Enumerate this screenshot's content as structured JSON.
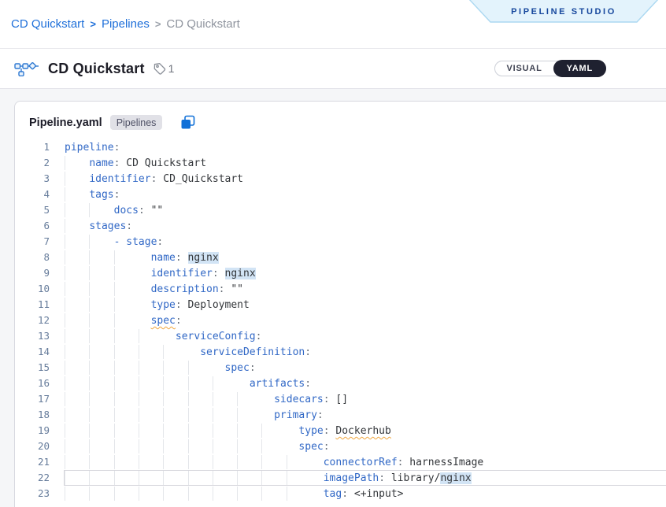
{
  "breadcrumb": {
    "items": [
      {
        "label": "CD Quickstart",
        "link": true
      },
      {
        "label": "Pipelines",
        "link": true
      },
      {
        "label": "CD Quickstart",
        "link": false
      }
    ],
    "separator": ">"
  },
  "banner": {
    "label": "PIPELINE STUDIO"
  },
  "header": {
    "title": "CD Quickstart",
    "tag_count": "1",
    "toggle": {
      "visual_label": "VISUAL",
      "yaml_label": "YAML",
      "active": "yaml"
    }
  },
  "editor": {
    "file_name": "Pipeline.yaml",
    "badge": "Pipelines",
    "lines": [
      {
        "n": "1",
        "indent": 0,
        "tokens": [
          [
            "key",
            "pipeline"
          ],
          [
            "punct",
            ":"
          ]
        ]
      },
      {
        "n": "2",
        "indent": 4,
        "tokens": [
          [
            "key",
            "name"
          ],
          [
            "punct",
            ":"
          ],
          [
            "val",
            " CD Quickstart"
          ]
        ]
      },
      {
        "n": "3",
        "indent": 4,
        "tokens": [
          [
            "key",
            "identifier"
          ],
          [
            "punct",
            ":"
          ],
          [
            "val",
            " CD_Quickstart"
          ]
        ]
      },
      {
        "n": "4",
        "indent": 4,
        "tokens": [
          [
            "key",
            "tags"
          ],
          [
            "punct",
            ":"
          ]
        ]
      },
      {
        "n": "5",
        "indent": 8,
        "tokens": [
          [
            "key",
            "docs"
          ],
          [
            "punct",
            ":"
          ],
          [
            "val",
            " \"\""
          ]
        ]
      },
      {
        "n": "6",
        "indent": 4,
        "tokens": [
          [
            "key",
            "stages"
          ],
          [
            "punct",
            ":"
          ]
        ]
      },
      {
        "n": "7",
        "indent": 8,
        "tokens": [
          [
            "key",
            "- stage"
          ],
          [
            "punct",
            ":"
          ]
        ]
      },
      {
        "n": "8",
        "indent": 14,
        "tokens": [
          [
            "key",
            "name"
          ],
          [
            "punct",
            ":"
          ],
          [
            "val",
            " "
          ],
          [
            "hl",
            "nginx"
          ]
        ]
      },
      {
        "n": "9",
        "indent": 14,
        "tokens": [
          [
            "key",
            "identifier"
          ],
          [
            "punct",
            ":"
          ],
          [
            "val",
            " "
          ],
          [
            "hl",
            "nginx"
          ]
        ]
      },
      {
        "n": "10",
        "indent": 14,
        "tokens": [
          [
            "key",
            "description"
          ],
          [
            "punct",
            ":"
          ],
          [
            "val",
            " \"\""
          ]
        ]
      },
      {
        "n": "11",
        "indent": 14,
        "tokens": [
          [
            "key",
            "type"
          ],
          [
            "punct",
            ":"
          ],
          [
            "val",
            " Deployment"
          ]
        ]
      },
      {
        "n": "12",
        "indent": 14,
        "tokens": [
          [
            "warnkey",
            "spec"
          ],
          [
            "punct",
            ":"
          ]
        ]
      },
      {
        "n": "13",
        "indent": 18,
        "tokens": [
          [
            "key",
            "serviceConfig"
          ],
          [
            "punct",
            ":"
          ]
        ]
      },
      {
        "n": "14",
        "indent": 22,
        "tokens": [
          [
            "key",
            "serviceDefinition"
          ],
          [
            "punct",
            ":"
          ]
        ]
      },
      {
        "n": "15",
        "indent": 26,
        "tokens": [
          [
            "key",
            "spec"
          ],
          [
            "punct",
            ":"
          ]
        ]
      },
      {
        "n": "16",
        "indent": 30,
        "tokens": [
          [
            "key",
            "artifacts"
          ],
          [
            "punct",
            ":"
          ]
        ]
      },
      {
        "n": "17",
        "indent": 34,
        "tokens": [
          [
            "key",
            "sidecars"
          ],
          [
            "punct",
            ":"
          ],
          [
            "val",
            " []"
          ]
        ]
      },
      {
        "n": "18",
        "indent": 34,
        "tokens": [
          [
            "key",
            "primary"
          ],
          [
            "punct",
            ":"
          ]
        ]
      },
      {
        "n": "19",
        "indent": 38,
        "tokens": [
          [
            "key",
            "type"
          ],
          [
            "punct",
            ":"
          ],
          [
            "val",
            " "
          ],
          [
            "warnval",
            "Dockerhub"
          ]
        ]
      },
      {
        "n": "20",
        "indent": 38,
        "tokens": [
          [
            "key",
            "spec"
          ],
          [
            "punct",
            ":"
          ]
        ]
      },
      {
        "n": "21",
        "indent": 42,
        "tokens": [
          [
            "key",
            "connectorRef"
          ],
          [
            "punct",
            ":"
          ],
          [
            "val",
            " harnessImage"
          ]
        ]
      },
      {
        "n": "22",
        "indent": 42,
        "current": true,
        "tokens": [
          [
            "key",
            "imagePath"
          ],
          [
            "punct",
            ":"
          ],
          [
            "val",
            " library/"
          ],
          [
            "hl",
            "nginx"
          ]
        ]
      },
      {
        "n": "23",
        "indent": 42,
        "tokens": [
          [
            "key",
            "tag"
          ],
          [
            "punct",
            ":"
          ],
          [
            "val",
            " <+input>"
          ]
        ]
      }
    ]
  },
  "colors": {
    "accent_blue": "#1e6fd9",
    "yaml_key": "#3168c6",
    "yaml_value": "#33363a",
    "value_highlight_bg": "#d2e4f5",
    "warning_squiggle": "#f0a53c",
    "banner_bg": "#e3f3fc",
    "banner_text": "#16479d",
    "toggle_active_bg": "#1f2130"
  }
}
